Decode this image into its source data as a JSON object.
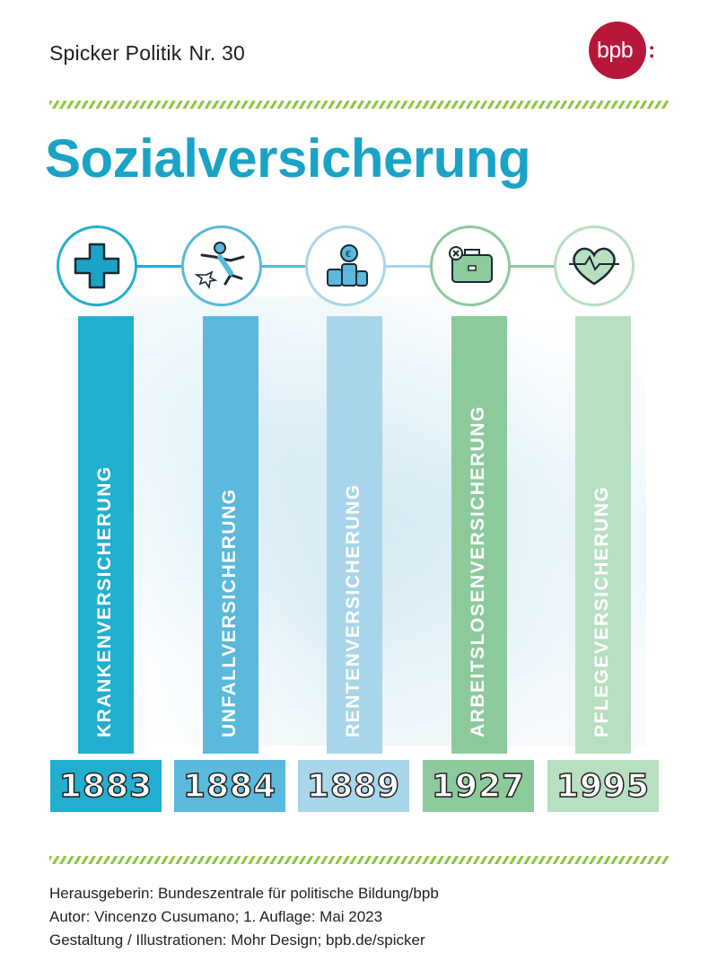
{
  "header": {
    "series": "Spicker Politik",
    "number": "Nr. 30",
    "logo_text": "bpb",
    "logo_colon": ":"
  },
  "title": "Sozialversicherung",
  "colors": {
    "title": "#1ba3c6",
    "logo": "#b7173a",
    "stripe": "#8cc63f"
  },
  "insurances": [
    {
      "label": "KRANKENVERSICHERUNG",
      "year": "1883",
      "icon": "cross-icon",
      "color": "#22afcf"
    },
    {
      "label": "UNFALLVERSICHERUNG",
      "year": "1884",
      "icon": "falling-person-icon",
      "color": "#5ab9dc"
    },
    {
      "label": "RENTENVERSICHERUNG",
      "year": "1889",
      "icon": "coin-stacks-icon",
      "color": "#a9d6ea"
    },
    {
      "label": "ARBEITSLOSENVERSICHERUNG",
      "year": "1927",
      "icon": "briefcase-x-icon",
      "color": "#8cca9c"
    },
    {
      "label": "PFLEGEVERSICHERUNG",
      "year": "1995",
      "icon": "heart-pulse-icon",
      "color": "#b8dfc2"
    }
  ],
  "footer": {
    "publisher": "Herausgeberin: Bundeszentrale für politische Bildung/bpb",
    "author": "Autor: Vincenzo Cusumano; 1. Auflage: Mai 2023",
    "design": "Gestaltung / Illustrationen: Mohr Design; bpb.de/spicker"
  }
}
